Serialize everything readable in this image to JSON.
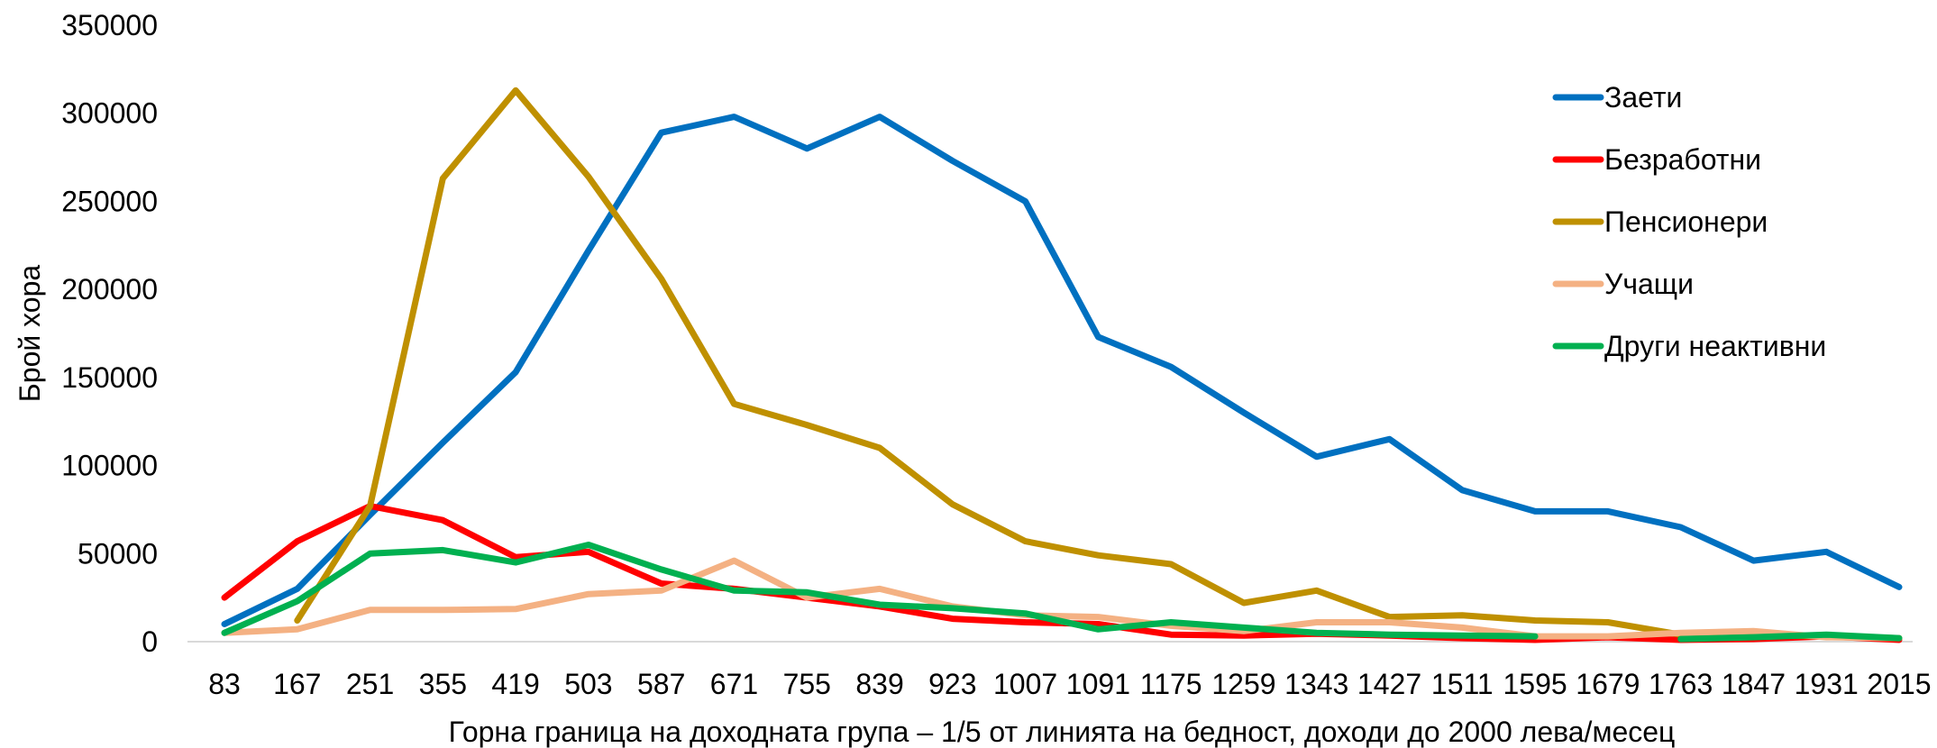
{
  "chart_data": {
    "type": "line",
    "title": "",
    "xlabel": "Горна граница на доходната група – 1/5 от линията на бедност, доходи до 2000 лева/месец",
    "ylabel": "Брой хора",
    "ylim": [
      0,
      350000
    ],
    "yticks": [
      "0",
      "50000",
      "100000",
      "150000",
      "200000",
      "250000",
      "300000",
      "350000"
    ],
    "grid": false,
    "legend_position": "top-right",
    "categories": [
      "83",
      "167",
      "251",
      "355",
      "419",
      "503",
      "587",
      "671",
      "755",
      "839",
      "923",
      "1007",
      "1091",
      "1175",
      "1259",
      "1343",
      "1427",
      "1511",
      "1595",
      "1679",
      "1763",
      "1847",
      "1931",
      "2015"
    ],
    "series": [
      {
        "name": "Заети",
        "color": "#0070C0",
        "values": [
          10000,
          30000,
          72000,
          113000,
          153000,
          222000,
          289000,
          298000,
          280000,
          298000,
          273000,
          250000,
          173000,
          156000,
          130000,
          105000,
          115000,
          86000,
          74000,
          74000,
          65000,
          46000,
          51000,
          31000
        ]
      },
      {
        "name": "Безработни",
        "color": "#FF0000",
        "values": [
          25000,
          57000,
          77000,
          69000,
          48000,
          51000,
          33000,
          30000,
          25000,
          20000,
          13000,
          11000,
          10000,
          4000,
          3500,
          4500,
          3500,
          2000,
          1000,
          2500,
          1000,
          1500,
          3000,
          1000
        ]
      },
      {
        "name": "Пенсионери",
        "color": "#BF9000",
        "values": [
          null,
          12000,
          77000,
          263000,
          313000,
          264000,
          206000,
          135000,
          123000,
          110000,
          78000,
          57000,
          49000,
          44000,
          22000,
          29000,
          14000,
          15000,
          12000,
          11000,
          4000,
          4000,
          3000,
          2000
        ]
      },
      {
        "name": "Учащи",
        "color": "#F4B183",
        "values": [
          5000,
          7000,
          18000,
          18000,
          18500,
          27000,
          29000,
          46000,
          25000,
          30000,
          20000,
          15000,
          14000,
          9000,
          6000,
          11000,
          11000,
          8000,
          3000,
          3000,
          5000,
          6000,
          2500,
          2000
        ]
      },
      {
        "name": "Други неактивни",
        "color": "#00B050",
        "values": [
          5000,
          23000,
          50000,
          52000,
          45000,
          55000,
          41000,
          29000,
          28000,
          21000,
          19000,
          16000,
          7000,
          11000,
          8000,
          5000,
          4000,
          3500,
          3000,
          null,
          1500,
          2500,
          4000,
          2000
        ]
      }
    ]
  }
}
